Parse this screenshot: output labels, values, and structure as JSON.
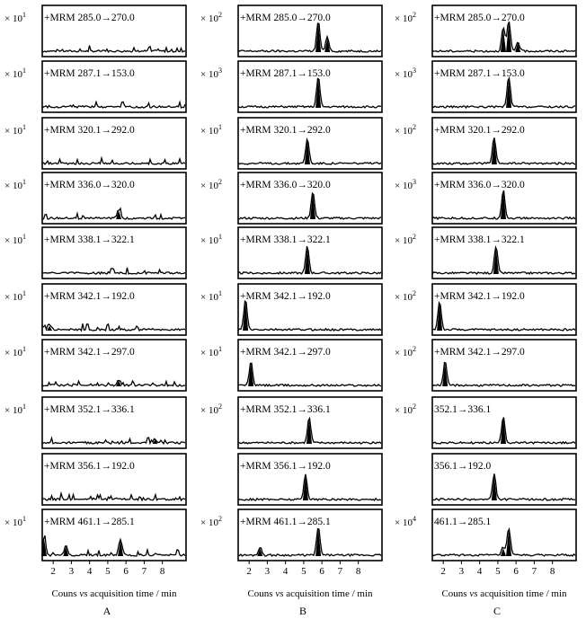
{
  "figure": {
    "columns": [
      {
        "label": "A",
        "xlabel_pre": "Couns ",
        "xlabel_vs": "vs",
        "xlabel_post": " acquisition time / min",
        "panels": [
          {
            "title": "+MRM 285.0→270.0",
            "scale": "× 10",
            "exp": "1"
          },
          {
            "title": "+MRM 287.1→153.0",
            "scale": "× 10",
            "exp": "1"
          },
          {
            "title": "+MRM 320.1→292.0",
            "scale": "× 10",
            "exp": "1"
          },
          {
            "title": "+MRM 336.0→320.0",
            "scale": "× 10",
            "exp": "1"
          },
          {
            "title": "+MRM 338.1→322.1",
            "scale": "× 10",
            "exp": "1"
          },
          {
            "title": "+MRM 342.1→192.0",
            "scale": "× 10",
            "exp": "1"
          },
          {
            "title": "+MRM 342.1→297.0",
            "scale": "× 10",
            "exp": "1"
          },
          {
            "title": "+MRM 352.1→336.1",
            "scale": "× 10",
            "exp": "1"
          },
          {
            "title": "+MRM 356.1→192.0",
            "scale": "",
            "exp": ""
          },
          {
            "title": "+MRM 461.1→285.1",
            "scale": "× 10",
            "exp": "1"
          }
        ]
      },
      {
        "label": "B",
        "xlabel_pre": "Couns ",
        "xlabel_vs": "vs",
        "xlabel_post": " acquisition time / min",
        "panels": [
          {
            "title": "+MRM 285.0→270.0",
            "scale": "× 10",
            "exp": "2"
          },
          {
            "title": "+MRM 287.1→153.0",
            "scale": "× 10",
            "exp": "3"
          },
          {
            "title": "+MRM 320.1→292.0",
            "scale": "× 10",
            "exp": "1"
          },
          {
            "title": "+MRM 336.0→320.0",
            "scale": "× 10",
            "exp": "2"
          },
          {
            "title": "+MRM 338.1→322.1",
            "scale": "× 10",
            "exp": "1"
          },
          {
            "title": "+MRM 342.1→192.0",
            "scale": "× 10",
            "exp": "1"
          },
          {
            "title": "+MRM 342.1→297.0",
            "scale": "× 10",
            "exp": "1"
          },
          {
            "title": "+MRM 352.1→336.1",
            "scale": "× 10",
            "exp": "2"
          },
          {
            "title": "+MRM 356.1→192.0",
            "scale": "",
            "exp": ""
          },
          {
            "title": "+MRM 461.1→285.1",
            "scale": "× 10",
            "exp": "2"
          }
        ]
      },
      {
        "label": "C",
        "xlabel_pre": "Couns ",
        "xlabel_vs": "vs",
        "xlabel_post": " acquisition time / min",
        "panels": [
          {
            "title": "+MRM 285.0→270.0",
            "scale": "× 10",
            "exp": "2"
          },
          {
            "title": "+MRM 287.1→153.0",
            "scale": "× 10",
            "exp": "3"
          },
          {
            "title": "+MRM 320.1→292.0",
            "scale": "× 10",
            "exp": "2"
          },
          {
            "title": "+MRM 336.0→320.0",
            "scale": "× 10",
            "exp": "3"
          },
          {
            "title": "+MRM 338.1→322.1",
            "scale": "× 10",
            "exp": "2"
          },
          {
            "title": "+MRM 342.1→192.0",
            "scale": "× 10",
            "exp": "2"
          },
          {
            "title": "+MRM 342.1→297.0",
            "scale": "× 10",
            "exp": "2"
          },
          {
            "title": "352.1→336.1",
            "scale": "× 10",
            "exp": "2"
          },
          {
            "title": "356.1→192.0",
            "scale": "",
            "exp": ""
          },
          {
            "title": "461.1→285.1",
            "scale": "× 10",
            "exp": "4"
          }
        ]
      }
    ]
  },
  "chart_data": {
    "type": "line",
    "xlim": [
      1.4,
      9.3
    ],
    "x_ticks": [
      "2",
      "3",
      "4",
      "5",
      "6",
      "7",
      "8"
    ],
    "grid": false,
    "columns": [
      {
        "label": "A",
        "peaks": [
          [],
          [],
          [],
          [
            [
              5.6,
              0.28
            ]
          ],
          [],
          [
            [
              1.8,
              0.15
            ]
          ],
          [
            [
              5.6,
              0.18
            ]
          ],
          [
            [
              7.6,
              0.12
            ]
          ],
          [],
          [
            [
              1.5,
              0.55
            ],
            [
              2.7,
              0.3
            ],
            [
              5.7,
              0.5
            ]
          ]
        ]
      },
      {
        "label": "B",
        "peaks": [
          [
            [
              5.8,
              0.95
            ],
            [
              6.3,
              0.45
            ]
          ],
          [
            [
              5.8,
              0.95
            ]
          ],
          [
            [
              5.2,
              0.8
            ]
          ],
          [
            [
              5.5,
              0.85
            ]
          ],
          [
            [
              5.2,
              0.85
            ]
          ],
          [
            [
              1.8,
              0.95
            ]
          ],
          [
            [
              2.1,
              0.75
            ]
          ],
          [
            [
              5.3,
              0.8
            ]
          ],
          [
            [
              5.1,
              0.8
            ]
          ],
          [
            [
              2.6,
              0.25
            ],
            [
              5.8,
              0.9
            ]
          ]
        ]
      },
      {
        "label": "C",
        "peaks": [
          [
            [
              5.3,
              0.75
            ],
            [
              5.6,
              0.95
            ],
            [
              6.1,
              0.3
            ]
          ],
          [
            [
              5.6,
              0.95
            ]
          ],
          [
            [
              4.8,
              0.85
            ]
          ],
          [
            [
              5.3,
              0.9
            ]
          ],
          [
            [
              4.9,
              0.85
            ]
          ],
          [
            [
              1.8,
              0.9
            ]
          ],
          [
            [
              2.1,
              0.75
            ]
          ],
          [
            [
              5.3,
              0.85
            ]
          ],
          [
            [
              4.8,
              0.8
            ]
          ],
          [
            [
              5.3,
              0.25
            ],
            [
              5.6,
              0.85
            ]
          ]
        ]
      }
    ]
  }
}
